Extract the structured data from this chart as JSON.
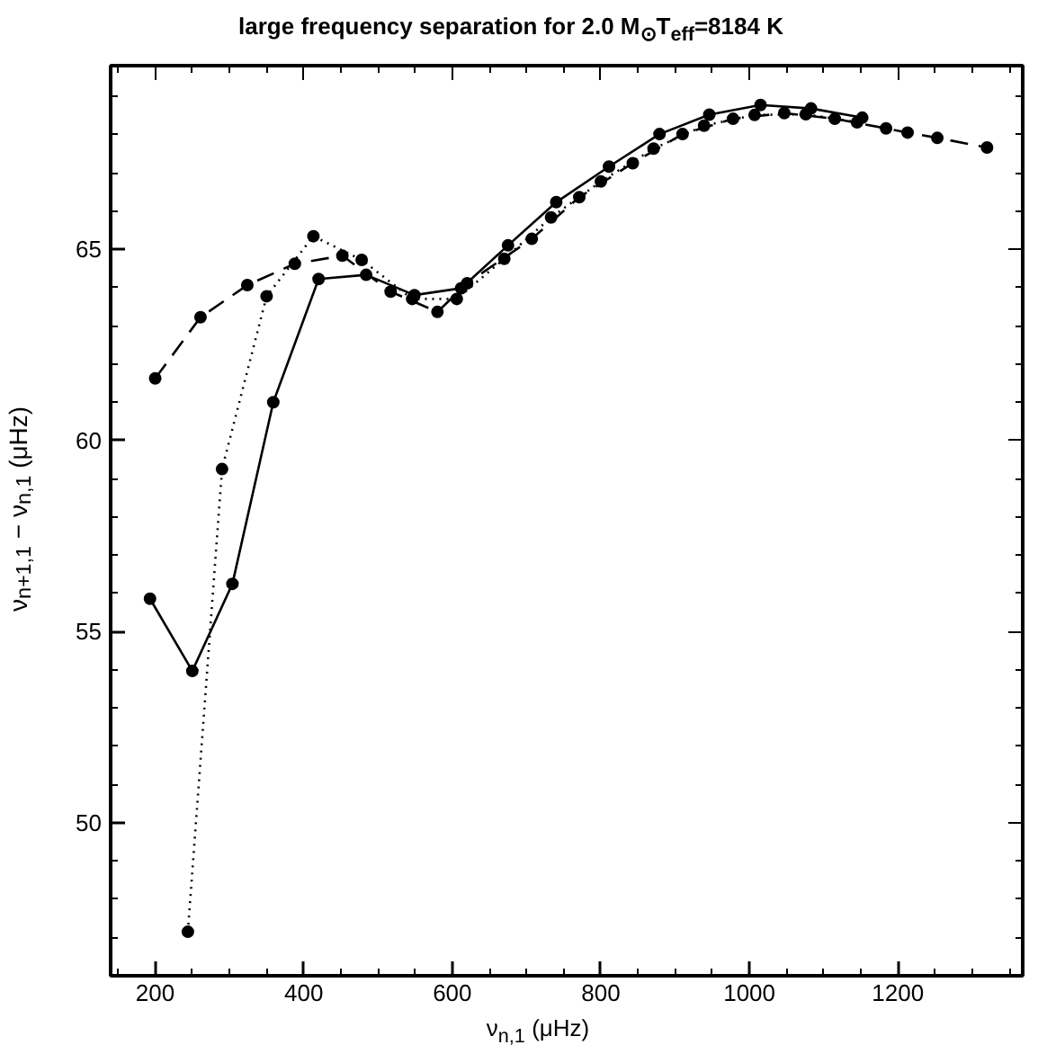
{
  "chart_data": {
    "type": "line",
    "title": "large frequency separation for 2.0 M$_{⊙}$T$_{eff}$=8184 K",
    "xlabel": "ν$_{n,1}$ (μHz)",
    "ylabel": "ν$_{n+1,1}$ − ν$_{n,1}$ (μHz)",
    "xlim": [
      140,
      1368
    ],
    "ylim": [
      46,
      69.8
    ],
    "xticks": [
      200,
      400,
      600,
      800,
      1000,
      1200
    ],
    "yticks": [
      50,
      55,
      60,
      65
    ],
    "grid": false,
    "marker": "circle",
    "series": [
      {
        "color": "#000000",
        "line_style": "solid",
        "x": [
          193,
          250,
          304,
          359,
          420,
          484,
          549,
          612,
          675,
          740,
          811,
          879,
          946,
          1015,
          1083,
          1152
        ],
        "values": [
          55.86,
          53.97,
          56.25,
          61.0,
          64.22,
          64.33,
          63.8,
          63.98,
          65.1,
          66.23,
          67.16,
          68.01,
          68.52,
          68.77,
          68.68,
          68.44
        ]
      },
      {
        "color": "#000000",
        "line_style": "dotted",
        "x": [
          244,
          290,
          350,
          413,
          478,
          546,
          606,
          670,
          733,
          800,
          871,
          939,
          1007,
          1076,
          1145
        ],
        "values": [
          47.15,
          59.25,
          63.77,
          65.34,
          64.72,
          63.7,
          63.7,
          64.75,
          65.83,
          66.77,
          67.63,
          68.23,
          68.51,
          68.53,
          68.32
        ]
      },
      {
        "color": "#000000",
        "line_style": "dashed",
        "x": [
          200,
          261,
          324,
          388,
          452,
          517,
          580,
          620,
          707,
          771,
          843,
          910,
          978,
          1047,
          1115,
          1184,
          1213,
          1253,
          1320
        ],
        "values": [
          61.62,
          63.22,
          64.06,
          64.62,
          64.83,
          63.89,
          63.36,
          64.11,
          65.27,
          66.36,
          67.25,
          68.01,
          68.41,
          68.56,
          68.41,
          68.16,
          68.05,
          67.91,
          67.66
        ]
      }
    ]
  }
}
